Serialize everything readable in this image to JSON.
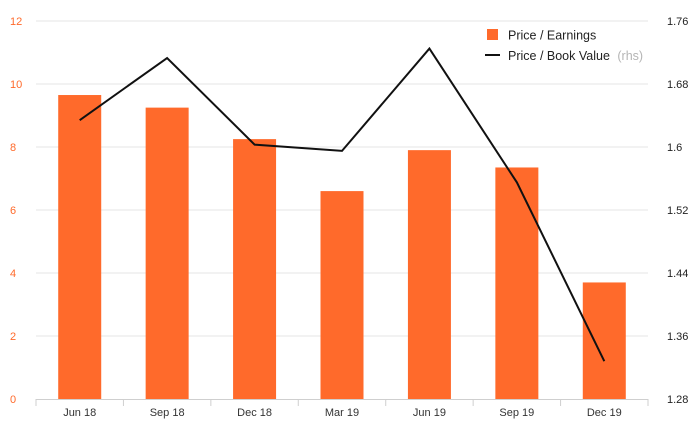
{
  "chart_data": {
    "type": "bar+line",
    "categories": [
      "Jun 18",
      "Sep 18",
      "Dec 18",
      "Mar 19",
      "Jun 19",
      "Sep 19",
      "Dec 19"
    ],
    "series": [
      {
        "name": "Price / Earnings",
        "type": "bar",
        "axis": "left",
        "color": "#ff6a2b",
        "values": [
          9.65,
          9.25,
          8.25,
          6.6,
          7.9,
          7.35,
          3.7
        ]
      },
      {
        "name": "Price / Book Value",
        "name_suffix": "(rhs)",
        "type": "line",
        "axis": "right",
        "color": "#111111",
        "values": [
          1.634,
          1.713,
          1.603,
          1.595,
          1.725,
          1.555,
          1.328
        ]
      }
    ],
    "y_left": {
      "range": [
        0,
        12
      ],
      "ticks": [
        0,
        2,
        4,
        6,
        8,
        10,
        12
      ],
      "tick_labels": [
        "0",
        "2",
        "4",
        "6",
        "8",
        "10",
        "12"
      ],
      "tick_color": "#ff6a2b"
    },
    "y_right": {
      "range": [
        1.28,
        1.76
      ],
      "ticks": [
        1.28,
        1.36,
        1.44,
        1.52,
        1.6,
        1.68,
        1.76
      ],
      "tick_labels": [
        "1.28",
        "1.36",
        "1.44",
        "1.52",
        "1.6",
        "1.68",
        "1.76"
      ]
    },
    "grid": true,
    "grid_color": "#e6e6e6",
    "legend_position": "top-right"
  }
}
